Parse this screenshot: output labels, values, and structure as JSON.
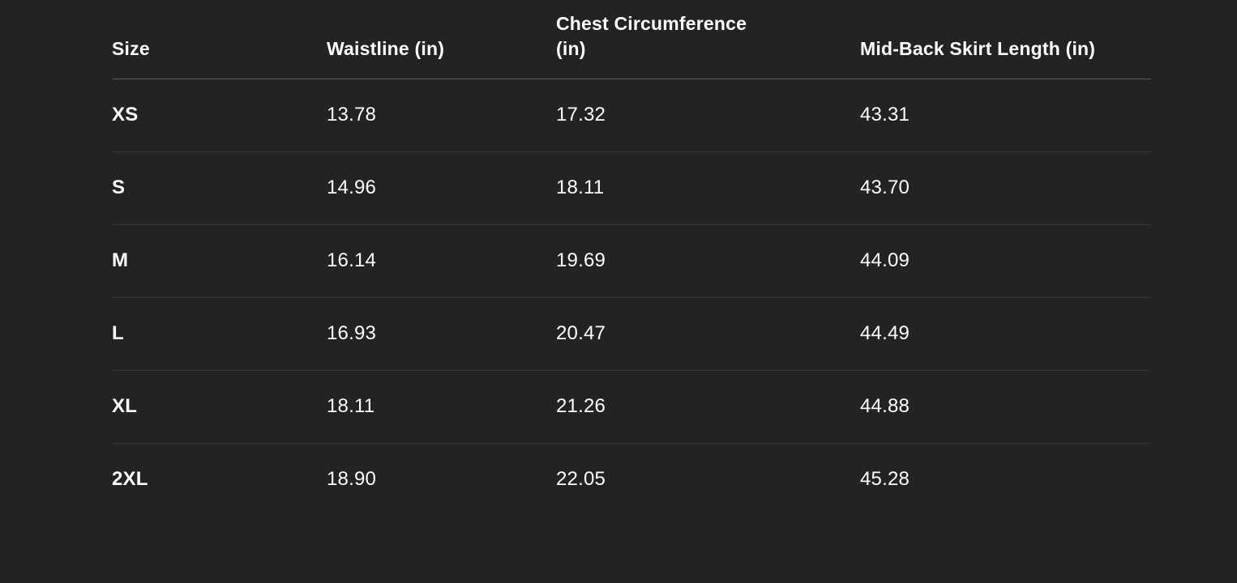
{
  "table": {
    "columns": [
      "Size",
      "Waistline (in)",
      "Chest Circumference (in)",
      "Mid-Back Skirt Length (in)"
    ],
    "rows": [
      {
        "size": "XS",
        "waistline": "13.78",
        "chest": "17.32",
        "skirt_length": "43.31"
      },
      {
        "size": "S",
        "waistline": "14.96",
        "chest": "18.11",
        "skirt_length": "43.70"
      },
      {
        "size": "M",
        "waistline": "16.14",
        "chest": "19.69",
        "skirt_length": "44.09"
      },
      {
        "size": "L",
        "waistline": "16.93",
        "chest": "20.47",
        "skirt_length": "44.49"
      },
      {
        "size": "XL",
        "waistline": "18.11",
        "chest": "21.26",
        "skirt_length": "44.88"
      },
      {
        "size": "2XL",
        "waistline": "18.90",
        "chest": "22.05",
        "skirt_length": "45.28"
      }
    ]
  },
  "colors": {
    "background": "#232323",
    "text": "#ffffff",
    "header_divider": "#5a5a5a",
    "row_divider": "#373737"
  }
}
